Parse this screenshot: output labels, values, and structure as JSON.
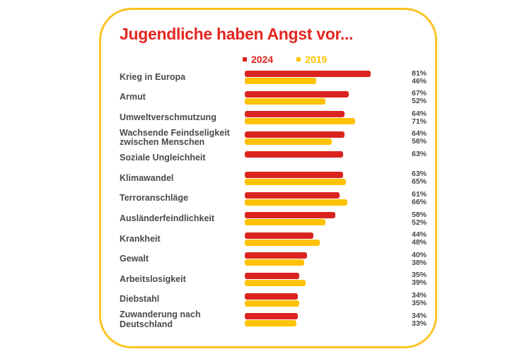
{
  "page": {
    "background": "#FFFFFF"
  },
  "card": {
    "border_color": "#FBC324",
    "background": "#FFFFFF"
  },
  "title": {
    "text": "Jugendliche haben Angst vor...",
    "color": "#E42620"
  },
  "legend": {
    "items": [
      {
        "label": "2024",
        "color": "#DB241F"
      },
      {
        "label": "2019",
        "color": "#FFC204"
      }
    ]
  },
  "chart_data": {
    "type": "bar",
    "orientation": "horizontal",
    "title": "Jugendliche haben Angst vor...",
    "unit": "percent",
    "xlim": [
      0,
      100
    ],
    "grid": false,
    "legend_position": "top",
    "categories": [
      "Krieg in Europa",
      "Armut",
      "Umweltverschmutzung",
      "Wachsende Feindseligkeit zwischen Menschen",
      "Soziale Ungleichheit",
      "Klimawandel",
      "Terroranschläge",
      "Ausländerfeindlichkeit",
      "Krankheit",
      "Gewalt",
      "Arbeitslosigkeit",
      "Diebstahl",
      "Zuwanderung nach Deutschland"
    ],
    "series": [
      {
        "name": "2024",
        "color": "#DB241F",
        "values": [
          81,
          67,
          64,
          64,
          63,
          63,
          61,
          58,
          44,
          40,
          35,
          34,
          34
        ]
      },
      {
        "name": "2019",
        "color": "#FFC204",
        "values": [
          46,
          52,
          71,
          56,
          null,
          65,
          66,
          52,
          48,
          38,
          39,
          35,
          33
        ]
      }
    ],
    "value_labels": [
      [
        "81%",
        "46%"
      ],
      [
        "67%",
        "52%"
      ],
      [
        "64%",
        "71%"
      ],
      [
        "64%",
        "56%"
      ],
      [
        "63%",
        null
      ],
      [
        "63%",
        "65%"
      ],
      [
        "61%",
        "66%"
      ],
      [
        "58%",
        "52%"
      ],
      [
        "44%",
        "48%"
      ],
      [
        "40%",
        "38%"
      ],
      [
        "35%",
        "39%"
      ],
      [
        "34%",
        "35%"
      ],
      [
        "34%",
        "33%"
      ]
    ]
  }
}
